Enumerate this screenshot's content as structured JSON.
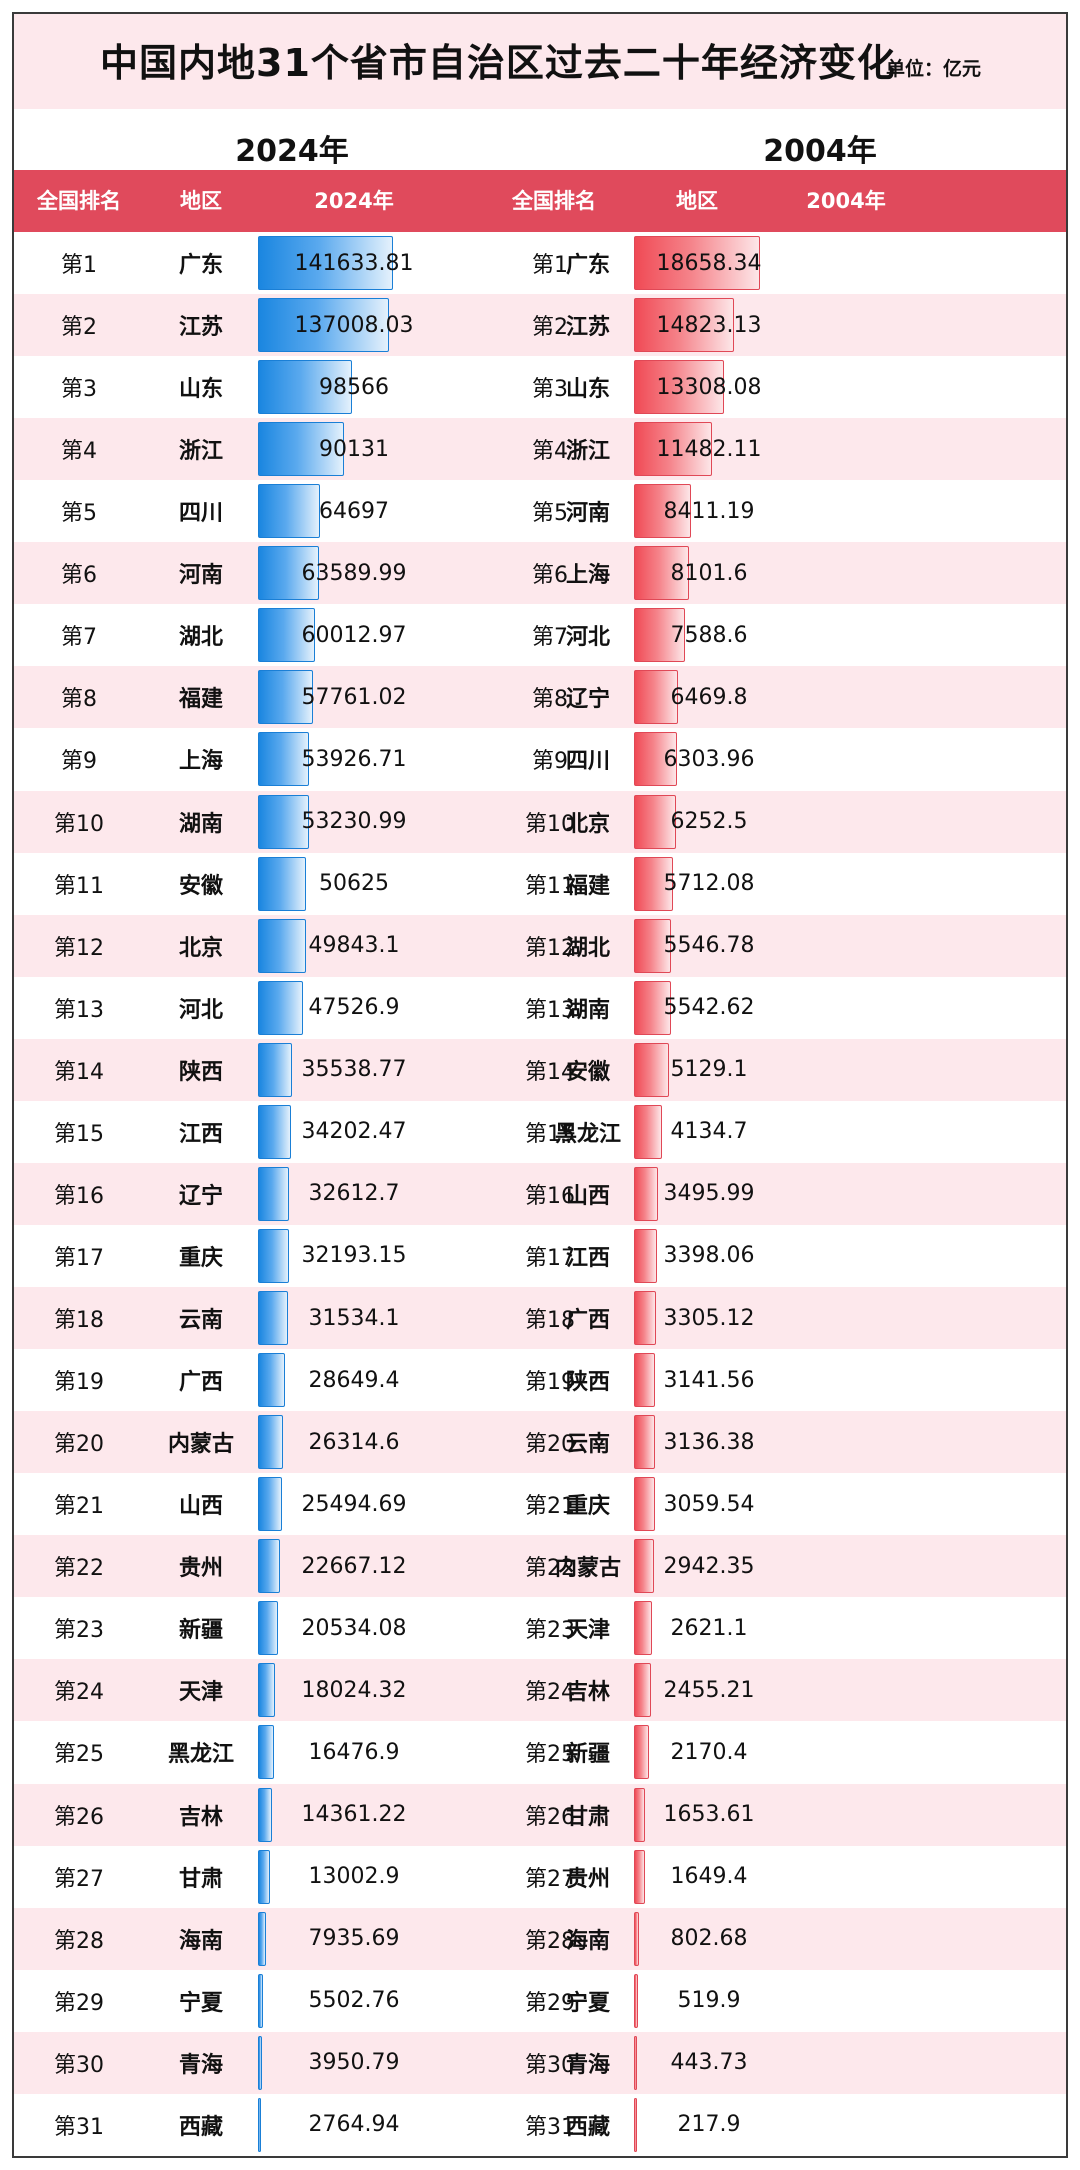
{
  "title": "中国内地31个省市自治区过去二十年经济变化",
  "unit": "单位：亿元",
  "left_year_title": "2024年",
  "right_year_title": "2004年",
  "headers": {
    "rank": "全国排名",
    "region": "地区",
    "col_2024": "2024年",
    "col_2004": "2004年"
  },
  "colors": {
    "header_bg": "#e04a5c",
    "stripe": "#fde8ec",
    "bar_2024": "#1a86e0",
    "bar_2004": "#f04a55"
  },
  "chart_data": {
    "type": "table",
    "title": "中国内地31个省市自治区过去二十年经济变化",
    "unit": "亿元",
    "series": [
      {
        "name": "2024年",
        "rows": [
          {
            "rank": "第1",
            "region": "广东",
            "value": "141633.81"
          },
          {
            "rank": "第2",
            "region": "江苏",
            "value": "137008.03"
          },
          {
            "rank": "第3",
            "region": "山东",
            "value": "98566"
          },
          {
            "rank": "第4",
            "region": "浙江",
            "value": "90131"
          },
          {
            "rank": "第5",
            "region": "四川",
            "value": "64697"
          },
          {
            "rank": "第6",
            "region": "河南",
            "value": "63589.99"
          },
          {
            "rank": "第7",
            "region": "湖北",
            "value": "60012.97"
          },
          {
            "rank": "第8",
            "region": "福建",
            "value": "57761.02"
          },
          {
            "rank": "第9",
            "region": "上海",
            "value": "53926.71"
          },
          {
            "rank": "第10",
            "region": "湖南",
            "value": "53230.99"
          },
          {
            "rank": "第11",
            "region": "安徽",
            "value": "50625"
          },
          {
            "rank": "第12",
            "region": "北京",
            "value": "49843.1"
          },
          {
            "rank": "第13",
            "region": "河北",
            "value": "47526.9"
          },
          {
            "rank": "第14",
            "region": "陕西",
            "value": "35538.77"
          },
          {
            "rank": "第15",
            "region": "江西",
            "value": "34202.47"
          },
          {
            "rank": "第16",
            "region": "辽宁",
            "value": "32612.7"
          },
          {
            "rank": "第17",
            "region": "重庆",
            "value": "32193.15"
          },
          {
            "rank": "第18",
            "region": "云南",
            "value": "31534.1"
          },
          {
            "rank": "第19",
            "region": "广西",
            "value": "28649.4"
          },
          {
            "rank": "第20",
            "region": "内蒙古",
            "value": "26314.6"
          },
          {
            "rank": "第21",
            "region": "山西",
            "value": "25494.69"
          },
          {
            "rank": "第22",
            "region": "贵州",
            "value": "22667.12"
          },
          {
            "rank": "第23",
            "region": "新疆",
            "value": "20534.08"
          },
          {
            "rank": "第24",
            "region": "天津",
            "value": "18024.32"
          },
          {
            "rank": "第25",
            "region": "黑龙江",
            "value": "16476.9"
          },
          {
            "rank": "第26",
            "region": "吉林",
            "value": "14361.22"
          },
          {
            "rank": "第27",
            "region": "甘肃",
            "value": "13002.9"
          },
          {
            "rank": "第28",
            "region": "海南",
            "value": "7935.69"
          },
          {
            "rank": "第29",
            "region": "宁夏",
            "value": "5502.76"
          },
          {
            "rank": "第30",
            "region": "青海",
            "value": "3950.79"
          },
          {
            "rank": "第31",
            "region": "西藏",
            "value": "2764.94"
          }
        ]
      },
      {
        "name": "2004年",
        "rows": [
          {
            "rank": "第1",
            "region": "广东",
            "value": "18658.34"
          },
          {
            "rank": "第2",
            "region": "江苏",
            "value": "14823.13"
          },
          {
            "rank": "第3",
            "region": "山东",
            "value": "13308.08"
          },
          {
            "rank": "第4",
            "region": "浙江",
            "value": "11482.11"
          },
          {
            "rank": "第5",
            "region": "河南",
            "value": "8411.19"
          },
          {
            "rank": "第6",
            "region": "上海",
            "value": "8101.6"
          },
          {
            "rank": "第7",
            "region": "河北",
            "value": "7588.6"
          },
          {
            "rank": "第8",
            "region": "辽宁",
            "value": "6469.8"
          },
          {
            "rank": "第9",
            "region": "四川",
            "value": "6303.96"
          },
          {
            "rank": "第10",
            "region": "北京",
            "value": "6252.5"
          },
          {
            "rank": "第11",
            "region": "福建",
            "value": "5712.08"
          },
          {
            "rank": "第12",
            "region": "湖北",
            "value": "5546.78"
          },
          {
            "rank": "第13",
            "region": "湖南",
            "value": "5542.62"
          },
          {
            "rank": "第14",
            "region": "安徽",
            "value": "5129.1"
          },
          {
            "rank": "第15",
            "region": "黑龙江",
            "value": "4134.7"
          },
          {
            "rank": "第16",
            "region": "山西",
            "value": "3495.99"
          },
          {
            "rank": "第17",
            "region": "江西",
            "value": "3398.06"
          },
          {
            "rank": "第18",
            "region": "广西",
            "value": "3305.12"
          },
          {
            "rank": "第19",
            "region": "陕西",
            "value": "3141.56"
          },
          {
            "rank": "第20",
            "region": "云南",
            "value": "3136.38"
          },
          {
            "rank": "第21",
            "region": "重庆",
            "value": "3059.54"
          },
          {
            "rank": "第22",
            "region": "内蒙古",
            "value": "2942.35"
          },
          {
            "rank": "第23",
            "region": "天津",
            "value": "2621.1"
          },
          {
            "rank": "第24",
            "region": "吉林",
            "value": "2455.21"
          },
          {
            "rank": "第25",
            "region": "新疆",
            "value": "2170.4"
          },
          {
            "rank": "第26",
            "region": "甘肃",
            "value": "1653.61"
          },
          {
            "rank": "第27",
            "region": "贵州",
            "value": "1649.4"
          },
          {
            "rank": "第28",
            "region": "海南",
            "value": "802.68"
          },
          {
            "rank": "第29",
            "region": "宁夏",
            "value": "519.9"
          },
          {
            "rank": "第30",
            "region": "青海",
            "value": "443.73"
          },
          {
            "rank": "第31",
            "region": "西藏",
            "value": "217.9"
          }
        ]
      }
    ]
  }
}
